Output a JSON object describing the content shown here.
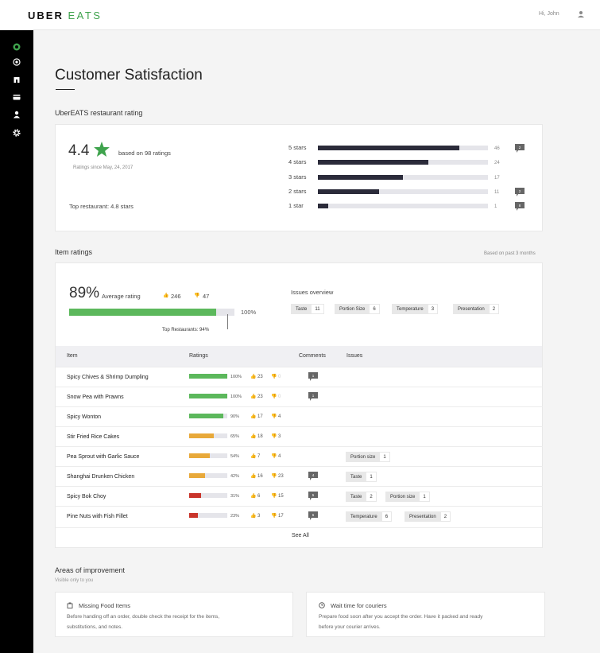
{
  "brand": {
    "uber": "UBER",
    "eats": "EATS"
  },
  "header": {
    "greeting": "Hi, John"
  },
  "sidebar": {
    "icons": [
      "eats-logo-icon",
      "target-icon",
      "restaurant-icon",
      "card-icon",
      "user-icon",
      "gear-icon"
    ]
  },
  "page": {
    "title": "Customer Satisfaction"
  },
  "restaurant_rating": {
    "section_title": "UberEATS restaurant rating",
    "score": "4.4",
    "based_on": "based on 98 ratings",
    "since": "Ratings since May, 24, 2017",
    "top_restaurant": "Top restaurant: 4.8 stars",
    "distribution": [
      {
        "label": "5 stars",
        "count": "46",
        "value": 0.83,
        "comments": "2"
      },
      {
        "label": "4 stars",
        "count": "24",
        "value": 0.65,
        "comments": ""
      },
      {
        "label": "3 stars",
        "count": "17",
        "value": 0.5,
        "comments": ""
      },
      {
        "label": "2 stars",
        "count": "11",
        "value": 0.36,
        "comments": "2"
      },
      {
        "label": "1 star",
        "count": "1",
        "value": 0.06,
        "comments": "8"
      }
    ]
  },
  "item_ratings": {
    "section_title": "Item ratings",
    "period": "Based on past 3 months",
    "average_pct": "89%",
    "average_label": "Average rating",
    "likes": "246",
    "dislikes": "47",
    "average_value": 0.89,
    "bar_end_label": "100%",
    "top_restaurants": "Top Restaurants: 94%",
    "issues_title": "Issues overview",
    "issues": [
      {
        "label": "Taste",
        "count": "11"
      },
      {
        "label": "Portion Size",
        "count": "6"
      },
      {
        "label": "Temperature",
        "count": "3"
      },
      {
        "label": "Presentation",
        "count": "2"
      }
    ],
    "table_headers": {
      "item": "Item",
      "ratings": "Ratings",
      "comments": "Comments",
      "issues": "Issues"
    },
    "rows": [
      {
        "name": "Spicy Chives & Shrimp Dumpling",
        "pct": "100%",
        "value": 1.0,
        "color": "#5cb85c",
        "up": "23",
        "down": "0",
        "comments": "1",
        "issues": []
      },
      {
        "name": "Snow Pea with Prawns",
        "pct": "100%",
        "value": 1.0,
        "color": "#5cb85c",
        "up": "23",
        "down": "0",
        "comments": "1",
        "issues": []
      },
      {
        "name": "Spicy Wonton",
        "pct": "90%",
        "value": 0.9,
        "color": "#5cb85c",
        "up": "17",
        "down": "4",
        "comments": "",
        "issues": []
      },
      {
        "name": "Stir Fried Rice Cakes",
        "pct": "65%",
        "value": 0.65,
        "color": "#e8a93a",
        "up": "18",
        "down": "3",
        "comments": "",
        "issues": []
      },
      {
        "name": "Pea Sprout with Garlic Sauce",
        "pct": "54%",
        "value": 0.54,
        "color": "#e8a93a",
        "up": "7",
        "down": "4",
        "comments": "",
        "issues": [
          {
            "label": "Portion size",
            "count": "1"
          }
        ]
      },
      {
        "name": "Shanghai Drunken Chicken",
        "pct": "42%",
        "value": 0.42,
        "color": "#e8a93a",
        "up": "16",
        "down": "23",
        "comments": "4",
        "issues": [
          {
            "label": "Taste",
            "count": "1"
          }
        ]
      },
      {
        "name": "Spicy Bok Choy",
        "pct": "31%",
        "value": 0.31,
        "color": "#c9352b",
        "up": "6",
        "down": "15",
        "comments": "5",
        "issues": [
          {
            "label": "Taste",
            "count": "2"
          },
          {
            "label": "Portion size",
            "count": "1"
          }
        ]
      },
      {
        "name": "Pine Nuts with Fish Fillet",
        "pct": "23%",
        "value": 0.23,
        "color": "#c9352b",
        "up": "3",
        "down": "17",
        "comments": "6",
        "issues": [
          {
            "label": "Temperature",
            "count": "6"
          },
          {
            "label": "Presentation",
            "count": "2"
          }
        ]
      }
    ],
    "see_all": "See All"
  },
  "improvement": {
    "title": "Areas of improvement",
    "subtitle": "Visible only to you",
    "cards": [
      {
        "icon": "bag-icon",
        "title": "Missing Food Items",
        "body1": "Before handing off an order, double check the receipt for the items,",
        "body2": "substitutions, and notes."
      },
      {
        "icon": "clock-icon",
        "title": "Wait time for couriers",
        "body1": "Prepare food soon after you accept the order. Have it packed and ready",
        "body2": "before your courier arrives."
      }
    ]
  },
  "colors": {
    "green": "#5cb85c",
    "orange": "#e8a93a",
    "red": "#c9352b",
    "dark_bar": "#2b2b3a",
    "brand_green": "#3fa34d"
  }
}
